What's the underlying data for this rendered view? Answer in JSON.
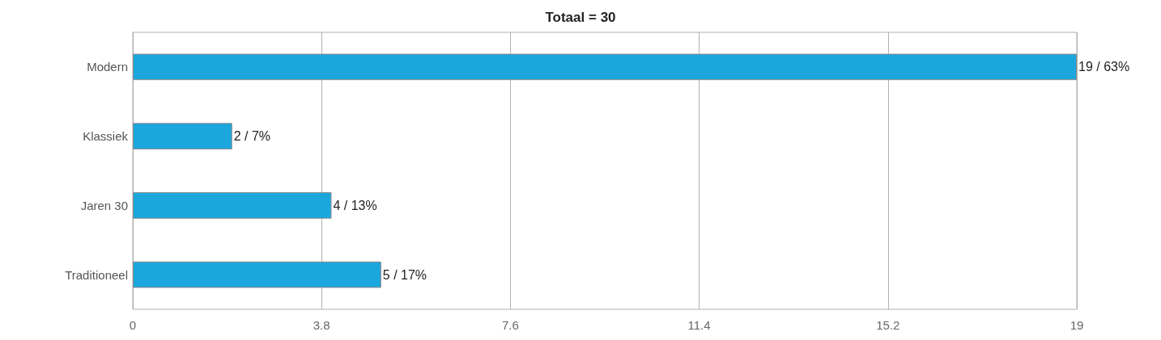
{
  "chart_data": {
    "type": "bar",
    "orientation": "horizontal",
    "title": "Totaal = 30",
    "categories": [
      "Modern",
      "Klassiek",
      "Jaren 30",
      "Traditioneel"
    ],
    "values": [
      19,
      2,
      4,
      5
    ],
    "value_labels": [
      "19 / 63%",
      "2 / 7%",
      "4 / 13%",
      "5 / 17%"
    ],
    "color": "#1ba7de",
    "xlim": [
      0,
      19
    ],
    "xticks": [
      0,
      3.8,
      7.6,
      11.4,
      15.2,
      19
    ],
    "grid": "x"
  }
}
